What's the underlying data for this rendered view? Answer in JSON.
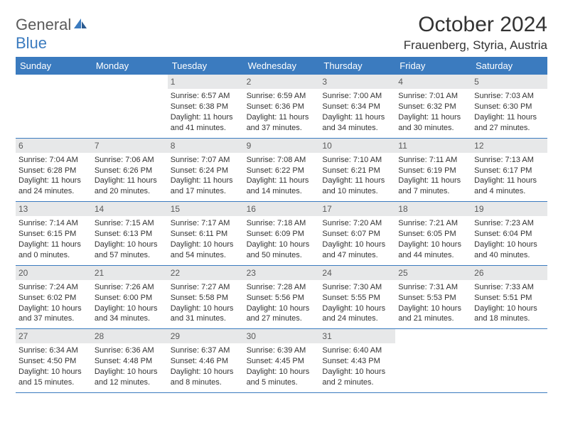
{
  "brand": {
    "general": "General",
    "blue": "Blue"
  },
  "title": "October 2024",
  "location": "Frauenberg, Styria, Austria",
  "colors": {
    "header_bg": "#3b7bbf",
    "header_text": "#ffffff",
    "daynum_bg": "#e7e8e9",
    "daynum_text": "#5a5a5a",
    "border": "#3b7bbf",
    "body_text": "#333333",
    "page_bg": "#ffffff"
  },
  "weekdays": [
    "Sunday",
    "Monday",
    "Tuesday",
    "Wednesday",
    "Thursday",
    "Friday",
    "Saturday"
  ],
  "weeks": [
    [
      null,
      null,
      {
        "n": "1",
        "sr": "6:57 AM",
        "ss": "6:38 PM",
        "dl": "11 hours and 41 minutes."
      },
      {
        "n": "2",
        "sr": "6:59 AM",
        "ss": "6:36 PM",
        "dl": "11 hours and 37 minutes."
      },
      {
        "n": "3",
        "sr": "7:00 AM",
        "ss": "6:34 PM",
        "dl": "11 hours and 34 minutes."
      },
      {
        "n": "4",
        "sr": "7:01 AM",
        "ss": "6:32 PM",
        "dl": "11 hours and 30 minutes."
      },
      {
        "n": "5",
        "sr": "7:03 AM",
        "ss": "6:30 PM",
        "dl": "11 hours and 27 minutes."
      }
    ],
    [
      {
        "n": "6",
        "sr": "7:04 AM",
        "ss": "6:28 PM",
        "dl": "11 hours and 24 minutes."
      },
      {
        "n": "7",
        "sr": "7:06 AM",
        "ss": "6:26 PM",
        "dl": "11 hours and 20 minutes."
      },
      {
        "n": "8",
        "sr": "7:07 AM",
        "ss": "6:24 PM",
        "dl": "11 hours and 17 minutes."
      },
      {
        "n": "9",
        "sr": "7:08 AM",
        "ss": "6:22 PM",
        "dl": "11 hours and 14 minutes."
      },
      {
        "n": "10",
        "sr": "7:10 AM",
        "ss": "6:21 PM",
        "dl": "11 hours and 10 minutes."
      },
      {
        "n": "11",
        "sr": "7:11 AM",
        "ss": "6:19 PM",
        "dl": "11 hours and 7 minutes."
      },
      {
        "n": "12",
        "sr": "7:13 AM",
        "ss": "6:17 PM",
        "dl": "11 hours and 4 minutes."
      }
    ],
    [
      {
        "n": "13",
        "sr": "7:14 AM",
        "ss": "6:15 PM",
        "dl": "11 hours and 0 minutes."
      },
      {
        "n": "14",
        "sr": "7:15 AM",
        "ss": "6:13 PM",
        "dl": "10 hours and 57 minutes."
      },
      {
        "n": "15",
        "sr": "7:17 AM",
        "ss": "6:11 PM",
        "dl": "10 hours and 54 minutes."
      },
      {
        "n": "16",
        "sr": "7:18 AM",
        "ss": "6:09 PM",
        "dl": "10 hours and 50 minutes."
      },
      {
        "n": "17",
        "sr": "7:20 AM",
        "ss": "6:07 PM",
        "dl": "10 hours and 47 minutes."
      },
      {
        "n": "18",
        "sr": "7:21 AM",
        "ss": "6:05 PM",
        "dl": "10 hours and 44 minutes."
      },
      {
        "n": "19",
        "sr": "7:23 AM",
        "ss": "6:04 PM",
        "dl": "10 hours and 40 minutes."
      }
    ],
    [
      {
        "n": "20",
        "sr": "7:24 AM",
        "ss": "6:02 PM",
        "dl": "10 hours and 37 minutes."
      },
      {
        "n": "21",
        "sr": "7:26 AM",
        "ss": "6:00 PM",
        "dl": "10 hours and 34 minutes."
      },
      {
        "n": "22",
        "sr": "7:27 AM",
        "ss": "5:58 PM",
        "dl": "10 hours and 31 minutes."
      },
      {
        "n": "23",
        "sr": "7:28 AM",
        "ss": "5:56 PM",
        "dl": "10 hours and 27 minutes."
      },
      {
        "n": "24",
        "sr": "7:30 AM",
        "ss": "5:55 PM",
        "dl": "10 hours and 24 minutes."
      },
      {
        "n": "25",
        "sr": "7:31 AM",
        "ss": "5:53 PM",
        "dl": "10 hours and 21 minutes."
      },
      {
        "n": "26",
        "sr": "7:33 AM",
        "ss": "5:51 PM",
        "dl": "10 hours and 18 minutes."
      }
    ],
    [
      {
        "n": "27",
        "sr": "6:34 AM",
        "ss": "4:50 PM",
        "dl": "10 hours and 15 minutes."
      },
      {
        "n": "28",
        "sr": "6:36 AM",
        "ss": "4:48 PM",
        "dl": "10 hours and 12 minutes."
      },
      {
        "n": "29",
        "sr": "6:37 AM",
        "ss": "4:46 PM",
        "dl": "10 hours and 8 minutes."
      },
      {
        "n": "30",
        "sr": "6:39 AM",
        "ss": "4:45 PM",
        "dl": "10 hours and 5 minutes."
      },
      {
        "n": "31",
        "sr": "6:40 AM",
        "ss": "4:43 PM",
        "dl": "10 hours and 2 minutes."
      },
      null,
      null
    ]
  ],
  "labels": {
    "sunrise": "Sunrise:",
    "sunset": "Sunset:",
    "daylight": "Daylight:"
  }
}
